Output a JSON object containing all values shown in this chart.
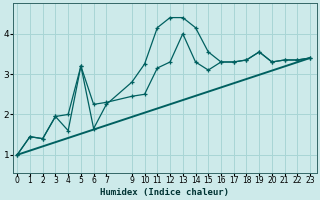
{
  "xlabel": "Humidex (Indice chaleur)",
  "background_color": "#cdeaea",
  "grid_color": "#a8d5d5",
  "line_color": "#006060",
  "x_ticks": [
    0,
    1,
    2,
    3,
    4,
    5,
    6,
    7,
    9,
    10,
    11,
    12,
    13,
    14,
    15,
    16,
    17,
    18,
    19,
    20,
    21,
    22,
    23
  ],
  "xlim": [
    -0.3,
    23.5
  ],
  "ylim": [
    0.55,
    4.75
  ],
  "y_ticks": [
    1,
    2,
    3,
    4
  ],
  "series": [
    {
      "x": [
        0,
        1,
        2,
        3,
        4,
        5,
        6,
        7,
        9,
        10,
        11,
        12,
        13,
        14,
        15,
        16,
        17,
        18,
        19,
        20,
        21,
        22,
        23
      ],
      "y": [
        1.0,
        1.45,
        1.4,
        1.95,
        2.0,
        3.2,
        1.65,
        2.25,
        2.8,
        3.25,
        4.15,
        4.4,
        4.4,
        4.15,
        3.55,
        3.3,
        3.3,
        3.35,
        3.55,
        3.3,
        3.35,
        3.35,
        3.4
      ]
    },
    {
      "x": [
        0,
        1,
        2,
        3,
        4,
        5,
        6,
        7,
        9,
        10,
        11,
        12,
        13,
        14,
        15,
        16,
        17,
        18,
        19,
        20,
        21,
        22,
        23
      ],
      "y": [
        1.0,
        1.45,
        1.4,
        1.95,
        1.6,
        3.2,
        2.25,
        2.3,
        2.45,
        2.5,
        3.15,
        3.3,
        4.0,
        3.3,
        3.1,
        3.3,
        3.3,
        3.35,
        3.55,
        3.3,
        3.35,
        3.35,
        3.4
      ]
    },
    {
      "x": [
        0,
        23
      ],
      "y": [
        1.0,
        3.4
      ]
    }
  ]
}
